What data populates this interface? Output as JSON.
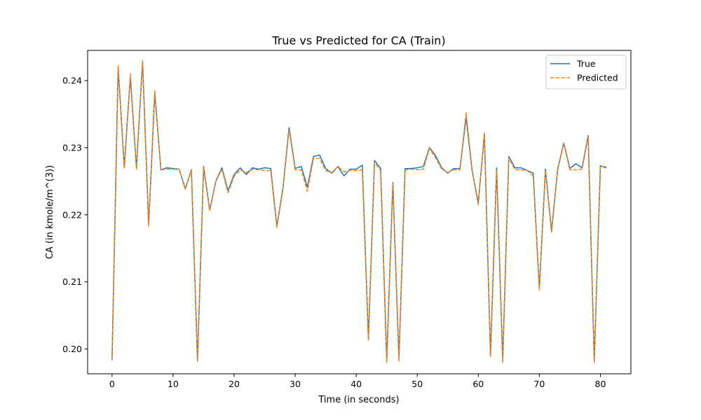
{
  "chart_data": {
    "type": "line",
    "title": "True vs Predicted for CA (Train)",
    "xlabel": "Time (in seconds)",
    "ylabel": "CA (in kmole/m^(3))",
    "xlim": [
      -4,
      85
    ],
    "ylim": [
      0.1963,
      0.2445
    ],
    "xticks": [
      0,
      10,
      20,
      30,
      40,
      50,
      60,
      70,
      80
    ],
    "yticks": [
      0.2,
      0.21,
      0.22,
      0.23,
      0.24
    ],
    "grid": false,
    "legend_position": "top-right",
    "x": [
      0,
      1,
      2,
      3,
      4,
      5,
      6,
      7,
      8,
      9,
      10,
      11,
      12,
      13,
      14,
      15,
      16,
      17,
      18,
      19,
      20,
      21,
      22,
      23,
      24,
      25,
      26,
      27,
      28,
      29,
      30,
      31,
      32,
      33,
      34,
      35,
      36,
      37,
      38,
      39,
      40,
      41,
      42,
      43,
      44,
      45,
      46,
      47,
      48,
      49,
      50,
      51,
      52,
      53,
      54,
      55,
      56,
      57,
      58,
      59,
      60,
      61,
      62,
      63,
      64,
      65,
      66,
      67,
      68,
      69,
      70,
      71,
      72,
      73,
      74,
      75,
      76,
      77,
      78,
      79,
      80,
      81
    ],
    "series": [
      {
        "name": "True",
        "color": "#1f77b4",
        "style": "solid",
        "values": [
          0.1983,
          0.242,
          0.2272,
          0.2405,
          0.227,
          0.2428,
          0.2185,
          0.2382,
          0.2267,
          0.227,
          0.2269,
          0.2268,
          0.2239,
          0.2267,
          0.1982,
          0.2272,
          0.2207,
          0.225,
          0.227,
          0.2236,
          0.226,
          0.227,
          0.226,
          0.227,
          0.2268,
          0.227,
          0.2269,
          0.2183,
          0.224,
          0.233,
          0.2269,
          0.2272,
          0.2241,
          0.2287,
          0.2289,
          0.2269,
          0.2262,
          0.2272,
          0.2258,
          0.2268,
          0.2268,
          0.2274,
          0.2015,
          0.2281,
          0.2269,
          0.1982,
          0.2248,
          0.1985,
          0.2269,
          0.2269,
          0.227,
          0.2272,
          0.23,
          0.2288,
          0.227,
          0.2262,
          0.2269,
          0.2269,
          0.2345,
          0.2265,
          0.2218,
          0.232,
          0.199,
          0.227,
          0.1983,
          0.2287,
          0.227,
          0.227,
          0.2266,
          0.2262,
          0.209,
          0.2268,
          0.2176,
          0.2268,
          0.2307,
          0.2269,
          0.2276,
          0.227,
          0.2318,
          0.1982,
          0.2273,
          0.227
        ]
      },
      {
        "name": "Predicted",
        "color": "#ff7f0e",
        "style": "dashed",
        "values": [
          0.1984,
          0.2422,
          0.2268,
          0.241,
          0.2268,
          0.243,
          0.2183,
          0.2385,
          0.2267,
          0.2268,
          0.2268,
          0.2268,
          0.2238,
          0.2267,
          0.1983,
          0.227,
          0.2206,
          0.225,
          0.2268,
          0.2233,
          0.2257,
          0.2267,
          0.2263,
          0.2268,
          0.2267,
          0.2266,
          0.2266,
          0.2181,
          0.2238,
          0.2327,
          0.2267,
          0.2267,
          0.2235,
          0.2284,
          0.2284,
          0.2266,
          0.2263,
          0.2272,
          0.2264,
          0.2266,
          0.2266,
          0.2267,
          0.2013,
          0.2278,
          0.2266,
          0.198,
          0.2246,
          0.1982,
          0.2267,
          0.2268,
          0.2267,
          0.2268,
          0.2299,
          0.2285,
          0.2268,
          0.2263,
          0.2267,
          0.2267,
          0.2352,
          0.2266,
          0.2215,
          0.2322,
          0.1988,
          0.2266,
          0.198,
          0.2285,
          0.2267,
          0.2267,
          0.2266,
          0.2258,
          0.2088,
          0.2266,
          0.2174,
          0.2266,
          0.2307,
          0.2267,
          0.2267,
          0.2268,
          0.2316,
          0.198,
          0.2272,
          0.2272
        ]
      }
    ]
  }
}
